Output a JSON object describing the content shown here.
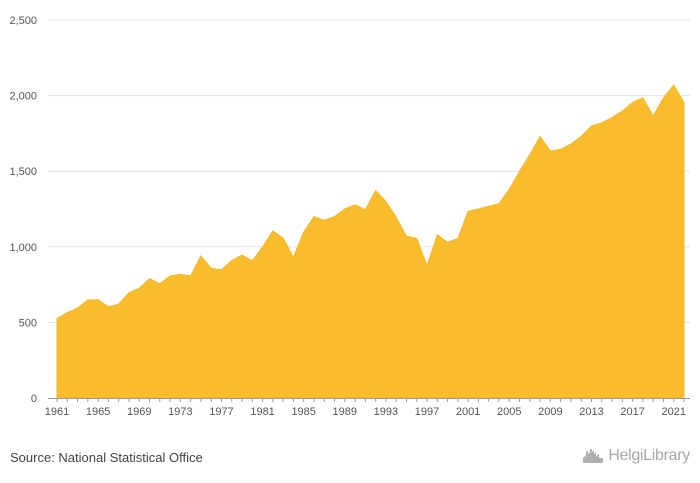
{
  "chart_data": {
    "type": "area",
    "x": [
      1961,
      1962,
      1963,
      1964,
      1965,
      1966,
      1967,
      1968,
      1969,
      1970,
      1971,
      1972,
      1973,
      1974,
      1975,
      1976,
      1977,
      1978,
      1979,
      1980,
      1981,
      1982,
      1983,
      1984,
      1985,
      1986,
      1987,
      1988,
      1989,
      1990,
      1991,
      1992,
      1993,
      1994,
      1995,
      1996,
      1997,
      1998,
      1999,
      2000,
      2001,
      2002,
      2003,
      2004,
      2005,
      2006,
      2007,
      2008,
      2009,
      2010,
      2011,
      2012,
      2013,
      2014,
      2015,
      2016,
      2017,
      2018,
      2019,
      2020,
      2021,
      2022
    ],
    "series": [
      {
        "values": [
          525,
          565,
          595,
          648,
          650,
          603,
          620,
          697,
          725,
          790,
          755,
          808,
          818,
          808,
          940,
          858,
          848,
          910,
          945,
          908,
          1000,
          1105,
          1058,
          930,
          1097,
          1200,
          1175,
          1200,
          1250,
          1278,
          1245,
          1372,
          1300,
          1195,
          1070,
          1055,
          875,
          1080,
          1030,
          1055,
          1235,
          1250,
          1268,
          1285,
          1380,
          1500,
          1610,
          1730,
          1633,
          1645,
          1680,
          1730,
          1800,
          1820,
          1855,
          1898,
          1955,
          1985,
          1865,
          1985,
          2070,
          1955
        ]
      }
    ],
    "xticks": [
      "1961",
      "1965",
      "1969",
      "1973",
      "1977",
      "1981",
      "1985",
      "1989",
      "1993",
      "1997",
      "2001",
      "2005",
      "2009",
      "2013",
      "2017",
      "2021"
    ],
    "yticks": [
      "0",
      "500",
      "1,000",
      "1,500",
      "2,000",
      "2,500"
    ],
    "ylim": [
      0,
      2500
    ],
    "xlim": [
      1961,
      2022
    ],
    "grid": true,
    "fill_color": "#f9bc2d",
    "line_color": "#f5b82a",
    "grid_color": "#e3e3e3",
    "axis_color": "#999999"
  },
  "footer": {
    "source": "Source: National Statistical Office",
    "brand": "HelgiLibrary"
  }
}
